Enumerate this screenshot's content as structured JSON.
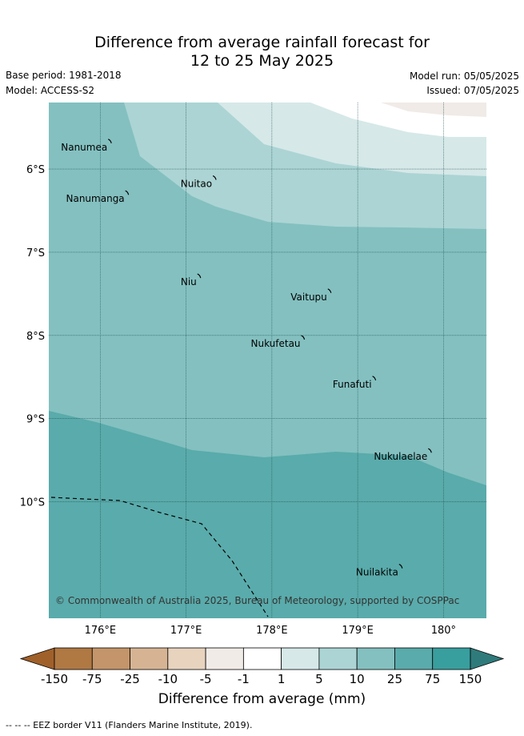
{
  "title": {
    "line1": "Difference from average rainfall forecast for",
    "line2": "12 to 25 May 2025"
  },
  "meta": {
    "base_period": "Base period: 1981-2018",
    "model": "Model: ACCESS-S2",
    "model_run": "Model run: 05/05/2025",
    "issued": "Issued: 07/05/2025"
  },
  "map": {
    "lon_range": [
      175.4,
      180.5
    ],
    "lat_range": [
      -11.4,
      -5.2
    ],
    "lon_ticks": [
      {
        "value": 176,
        "label": "176°E"
      },
      {
        "value": 177,
        "label": "177°E"
      },
      {
        "value": 178,
        "label": "178°E"
      },
      {
        "value": 179,
        "label": "179°E"
      },
      {
        "value": 180,
        "label": "180°"
      }
    ],
    "lat_ticks": [
      {
        "value": -6,
        "label": "6°S"
      },
      {
        "value": -7,
        "label": "7°S"
      },
      {
        "value": -8,
        "label": "8°S"
      },
      {
        "value": -9,
        "label": "9°S"
      },
      {
        "value": -10,
        "label": "10°S"
      }
    ],
    "islands": [
      {
        "name": "Nanumea",
        "lon": 176.12,
        "lat": -5.67
      },
      {
        "name": "Nuitao",
        "lon": 177.34,
        "lat": -6.11
      },
      {
        "name": "Nanumanga",
        "lon": 176.32,
        "lat": -6.29
      },
      {
        "name": "Niu",
        "lon": 177.16,
        "lat": -7.29
      },
      {
        "name": "Vaitupu",
        "lon": 178.68,
        "lat": -7.47
      },
      {
        "name": "Nukufetau",
        "lon": 178.37,
        "lat": -8.03
      },
      {
        "name": "Funafuti",
        "lon": 179.2,
        "lat": -8.52
      },
      {
        "name": "Nukulaelae",
        "lon": 179.85,
        "lat": -9.39
      },
      {
        "name": "Nuilakita",
        "lon": 179.51,
        "lat": -10.78
      }
    ],
    "copyright": "© Commonwealth of Australia 2025, Bureau of Meteorology, supported by COSPPac"
  },
  "colorbar": {
    "labels": [
      "-150",
      "-75",
      "-25",
      "-10",
      "-5",
      "-1",
      "1",
      "5",
      "10",
      "25",
      "75",
      "150"
    ],
    "colors": [
      "#a0602a",
      "#b07843",
      "#c4956a",
      "#d6b493",
      "#e8d3bf",
      "#f0ebe7",
      "#ffffff",
      "#d6e8e8",
      "#acd4d4",
      "#84c0c0",
      "#5aabab",
      "#399e9e",
      "#2f7b7b"
    ],
    "title": "Difference from average (mm)"
  },
  "legend_note": "-- -- -- EEZ border V11 (Flanders Marine Institute, 2019)."
}
